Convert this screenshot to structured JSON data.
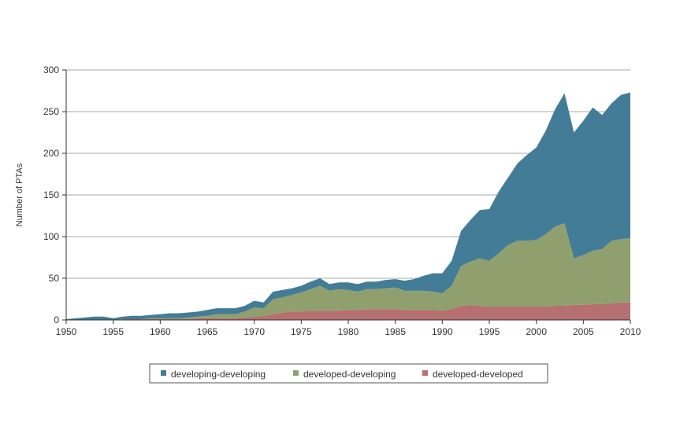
{
  "chart_data": {
    "type": "area",
    "stacked": true,
    "title": "",
    "xlabel": "",
    "ylabel": "Number of PTAs",
    "xlim": [
      1950,
      2010
    ],
    "ylim": [
      0,
      300
    ],
    "x_ticks": [
      1950,
      1955,
      1960,
      1965,
      1970,
      1975,
      1980,
      1985,
      1990,
      1995,
      2000,
      2005,
      2010
    ],
    "y_ticks": [
      0,
      50,
      100,
      150,
      200,
      250,
      300
    ],
    "grid": "horizontal",
    "legend_position": "bottom",
    "x": [
      1950,
      1951,
      1952,
      1953,
      1954,
      1955,
      1956,
      1957,
      1958,
      1959,
      1960,
      1961,
      1962,
      1963,
      1964,
      1965,
      1966,
      1967,
      1968,
      1969,
      1970,
      1971,
      1972,
      1973,
      1974,
      1975,
      1976,
      1977,
      1978,
      1979,
      1980,
      1981,
      1982,
      1983,
      1984,
      1985,
      1986,
      1987,
      1988,
      1989,
      1990,
      1991,
      1992,
      1993,
      1994,
      1995,
      1996,
      1997,
      1998,
      1999,
      2000,
      2001,
      2002,
      2003,
      2004,
      2005,
      2006,
      2007,
      2008,
      2009,
      2010
    ],
    "series": [
      {
        "name": "developed-developed",
        "color": "#b5706f",
        "values": [
          0,
          0,
          0,
          0,
          0,
          0,
          1,
          1,
          1,
          1,
          1,
          1,
          1,
          1,
          2,
          2,
          2,
          2,
          2,
          3,
          4,
          5,
          7,
          9,
          10,
          10,
          11,
          11,
          11,
          11,
          12,
          12,
          13,
          13,
          13,
          13,
          12,
          12,
          12,
          12,
          11,
          13,
          17,
          18,
          17,
          16,
          16,
          16,
          16,
          16,
          16,
          16,
          17,
          17,
          18,
          18,
          19,
          19,
          20,
          21,
          21
        ]
      },
      {
        "name": "developed-developing",
        "color": "#8fa06e",
        "values": [
          0,
          0,
          0,
          0,
          0,
          0,
          0,
          0,
          0,
          1,
          1,
          1,
          1,
          2,
          2,
          3,
          5,
          5,
          5,
          7,
          11,
          9,
          18,
          18,
          20,
          23,
          26,
          30,
          24,
          26,
          24,
          22,
          24,
          24,
          25,
          26,
          23,
          23,
          23,
          22,
          21,
          28,
          48,
          52,
          57,
          55,
          64,
          74,
          79,
          79,
          80,
          87,
          95,
          99,
          56,
          60,
          64,
          66,
          75,
          76,
          77
        ]
      },
      {
        "name": "developing-developing",
        "color": "#437c96",
        "values": [
          1,
          2,
          3,
          4,
          4,
          2,
          3,
          4,
          4,
          4,
          5,
          6,
          6,
          6,
          6,
          7,
          7,
          7,
          7,
          7,
          8,
          7,
          9,
          9,
          8,
          8,
          9,
          9,
          8,
          8,
          9,
          9,
          9,
          9,
          10,
          10,
          12,
          14,
          18,
          22,
          24,
          30,
          42,
          50,
          58,
          62,
          74,
          81,
          93,
          103,
          111,
          124,
          141,
          156,
          151,
          161,
          172,
          161,
          165,
          173,
          175
        ]
      }
    ]
  },
  "legend": {
    "items": [
      {
        "label": "developing-developing",
        "color": "#437c96"
      },
      {
        "label": "developed-developing",
        "color": "#8fa06e"
      },
      {
        "label": "developed-developed",
        "color": "#b5706f"
      }
    ]
  }
}
